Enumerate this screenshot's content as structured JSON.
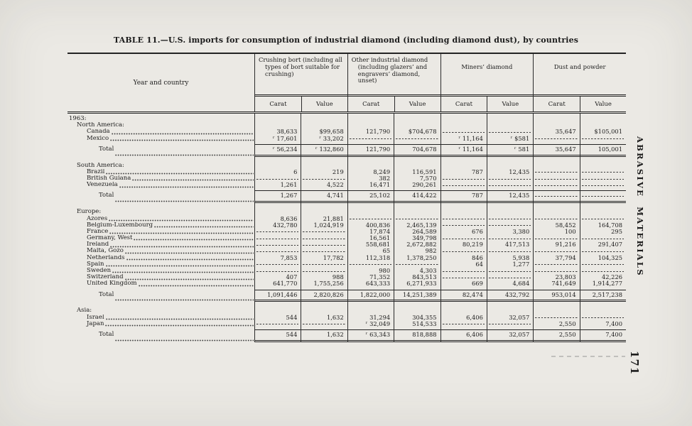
{
  "page": {
    "title": "TABLE 11.—U.S. imports for consumption of industrial diamond  (including diamond dust), by countries",
    "side_text": "ABRASIVE MATERIALS",
    "page_number": "171"
  },
  "table": {
    "row_header": "Year and country",
    "groups": [
      {
        "label": "Crushing bort (including all types of bort suitable for crushing)"
      },
      {
        "label": "Other industrial diamond (including glazers’ and engravers’ diamond, unset)"
      },
      {
        "label": "Miners’ diamond"
      },
      {
        "label": "Dust and powder"
      }
    ],
    "sub_labels": [
      "Carat",
      "Value"
    ],
    "rows": [
      {
        "type": "year",
        "label": "1963:"
      },
      {
        "type": "region",
        "label": "North America:"
      },
      {
        "type": "country",
        "label": "Canada",
        "cells": [
          "38,633",
          "$99,658",
          "121,790",
          "$704,678",
          "",
          "",
          "35,647",
          "$105,001"
        ]
      },
      {
        "type": "country",
        "label": "Mexico",
        "cells": [
          "ʳ 17,601",
          "ʳ 33,202",
          "",
          "",
          "ʳ 11,164",
          "ʳ $581",
          "",
          ""
        ]
      },
      {
        "type": "total",
        "label": "Total",
        "cells": [
          "ʳ 56,234",
          "ʳ 132,860",
          "121,790",
          "704,678",
          "ʳ 11,164",
          "ʳ 581",
          "35,647",
          "105,001"
        ]
      },
      {
        "type": "region",
        "label": "South America:"
      },
      {
        "type": "country",
        "label": "Brazil",
        "cells": [
          "6",
          "219",
          "8,249",
          "116,591",
          "787",
          "12,435",
          "",
          ""
        ]
      },
      {
        "type": "country",
        "label": "British Guiana",
        "cells": [
          "",
          "",
          "382",
          "7,570",
          "",
          "",
          "",
          ""
        ]
      },
      {
        "type": "country",
        "label": "Venezuela",
        "cells": [
          "1,261",
          "4,522",
          "16,471",
          "290,261",
          "",
          "",
          "",
          ""
        ]
      },
      {
        "type": "total",
        "label": "Total",
        "cells": [
          "1,267",
          "4,741",
          "25,102",
          "414,422",
          "787",
          "12,435",
          "",
          ""
        ]
      },
      {
        "type": "region",
        "label": "Europe:"
      },
      {
        "type": "country",
        "label": "Azores",
        "cells": [
          "8,636",
          "21,881",
          "",
          "",
          "",
          "",
          "",
          ""
        ]
      },
      {
        "type": "country",
        "label": "Belgium-Luxembourg",
        "cells": [
          "432,780",
          "1,024,919",
          "400,836",
          "2,465,139",
          "",
          "",
          "58,452",
          "164,708"
        ]
      },
      {
        "type": "country",
        "label": "France",
        "cells": [
          "",
          "",
          "17,874",
          "264,589",
          "676",
          "3,380",
          "100",
          "295"
        ]
      },
      {
        "type": "country",
        "label": "Germany, West",
        "cells": [
          "",
          "",
          "16,561",
          "349,798",
          "",
          "",
          "",
          ""
        ]
      },
      {
        "type": "country",
        "label": "Ireland",
        "cells": [
          "",
          "",
          "558,681",
          "2,672,882",
          "80,219",
          "417,513",
          "91,216",
          "291,407"
        ]
      },
      {
        "type": "country",
        "label": "Malta, Gozo",
        "cells": [
          "",
          "",
          "65",
          "982",
          "",
          "",
          "",
          ""
        ]
      },
      {
        "type": "country",
        "label": "Netherlands",
        "cells": [
          "7,853",
          "17,782",
          "112,318",
          "1,378,250",
          "846",
          "5,938",
          "37,794",
          "104,325"
        ]
      },
      {
        "type": "country",
        "label": "Spain",
        "cells": [
          "",
          "",
          "",
          "",
          "64",
          "1,277",
          "",
          ""
        ]
      },
      {
        "type": "country",
        "label": "Sweden",
        "cells": [
          "",
          "",
          "980",
          "4,303",
          "",
          "",
          "",
          ""
        ]
      },
      {
        "type": "country",
        "label": "Switzerland",
        "cells": [
          "407",
          "988",
          "71,352",
          "843,513",
          "",
          "",
          "23,803",
          "42,226"
        ]
      },
      {
        "type": "country",
        "label": "United Kingdom",
        "cells": [
          "641,770",
          "1,755,256",
          "643,333",
          "6,271,933",
          "669",
          "4,684",
          "741,649",
          "1,914,277"
        ]
      },
      {
        "type": "total",
        "label": "Total",
        "cells": [
          "1,091,446",
          "2,820,826",
          "1,822,000",
          "14,251,389",
          "82,474",
          "432,792",
          "953,014",
          "2,517,238"
        ]
      },
      {
        "type": "region",
        "label": "Asia:"
      },
      {
        "type": "country",
        "label": "Israel",
        "cells": [
          "544",
          "1,632",
          "31,294",
          "304,355",
          "6,406",
          "32,057",
          "",
          ""
        ]
      },
      {
        "type": "country",
        "label": "Japan",
        "cells": [
          "",
          "",
          "ʳ 32,049",
          "514,533",
          "",
          "",
          "2,550",
          "7,400"
        ]
      },
      {
        "type": "total",
        "label": "Total",
        "cells": [
          "544",
          "1,632",
          "ʳ 63,343",
          "818,888",
          "6,406",
          "32,057",
          "2,550",
          "7,400"
        ]
      }
    ]
  }
}
